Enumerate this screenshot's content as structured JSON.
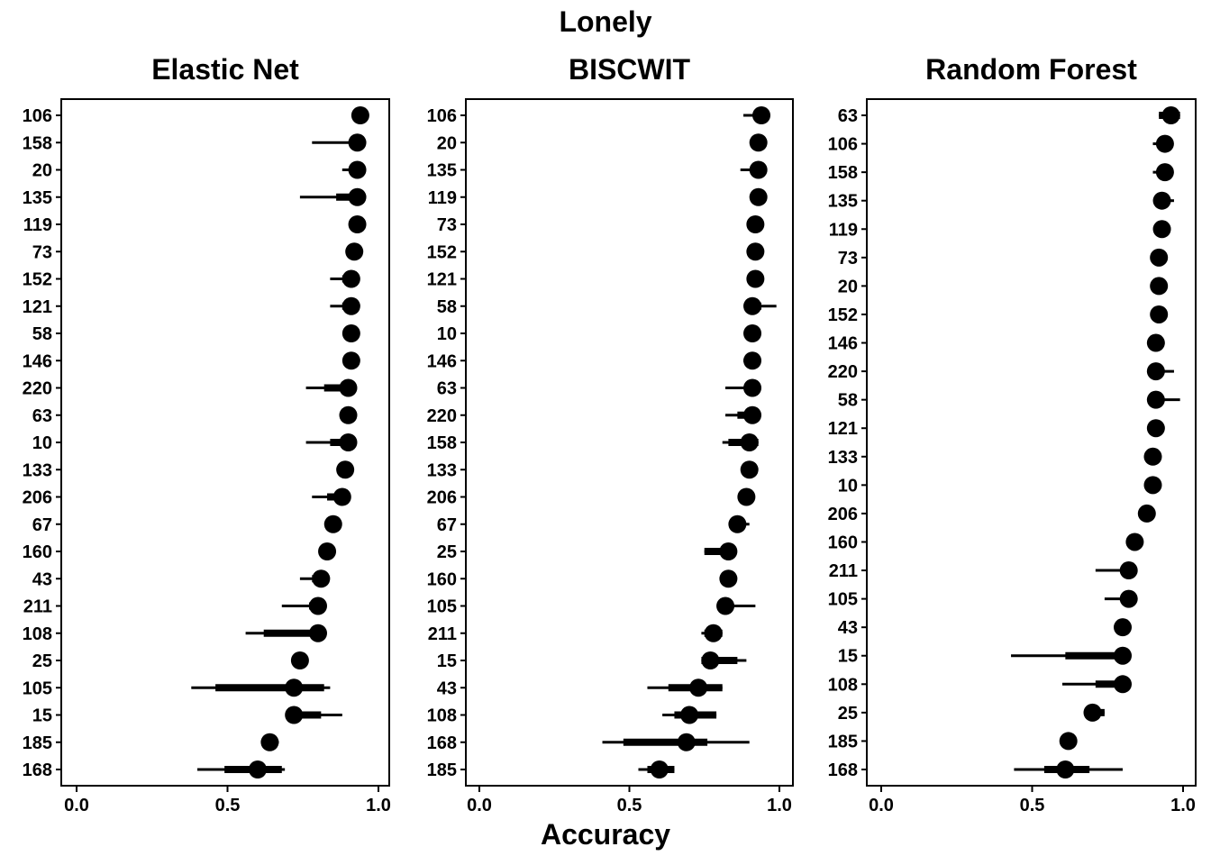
{
  "figure": {
    "title": "Lonely",
    "xlabel": "Accuracy"
  },
  "chart_data": [
    {
      "type": "dot-interval",
      "title": "Elastic Net",
      "xlim": [
        0.0,
        1.0
      ],
      "xticks": [
        "0.0",
        "0.5",
        "1.0"
      ],
      "grid": false,
      "rows": [
        {
          "label": "106",
          "value": 0.94,
          "inner": [
            0.94,
            0.94
          ],
          "outer": [
            0.94,
            0.94
          ]
        },
        {
          "label": "158",
          "value": 0.93,
          "inner": [
            0.93,
            0.93
          ],
          "outer": [
            0.78,
            0.93
          ]
        },
        {
          "label": "20",
          "value": 0.93,
          "inner": [
            0.92,
            0.93
          ],
          "outer": [
            0.88,
            0.93
          ]
        },
        {
          "label": "135",
          "value": 0.93,
          "inner": [
            0.86,
            0.93
          ],
          "outer": [
            0.74,
            0.93
          ]
        },
        {
          "label": "119",
          "value": 0.93,
          "inner": [
            0.93,
            0.93
          ],
          "outer": [
            0.93,
            0.93
          ]
        },
        {
          "label": "73",
          "value": 0.92,
          "inner": [
            0.92,
            0.92
          ],
          "outer": [
            0.92,
            0.92
          ]
        },
        {
          "label": "152",
          "value": 0.91,
          "inner": [
            0.88,
            0.92
          ],
          "outer": [
            0.84,
            0.92
          ]
        },
        {
          "label": "121",
          "value": 0.91,
          "inner": [
            0.88,
            0.92
          ],
          "outer": [
            0.84,
            0.93
          ]
        },
        {
          "label": "58",
          "value": 0.91,
          "inner": [
            0.91,
            0.91
          ],
          "outer": [
            0.91,
            0.91
          ]
        },
        {
          "label": "146",
          "value": 0.91,
          "inner": [
            0.91,
            0.91
          ],
          "outer": [
            0.91,
            0.91
          ]
        },
        {
          "label": "220",
          "value": 0.9,
          "inner": [
            0.82,
            0.91
          ],
          "outer": [
            0.76,
            0.91
          ]
        },
        {
          "label": "63",
          "value": 0.9,
          "inner": [
            0.9,
            0.9
          ],
          "outer": [
            0.9,
            0.9
          ]
        },
        {
          "label": "10",
          "value": 0.9,
          "inner": [
            0.84,
            0.91
          ],
          "outer": [
            0.76,
            0.91
          ]
        },
        {
          "label": "133",
          "value": 0.89,
          "inner": [
            0.89,
            0.89
          ],
          "outer": [
            0.89,
            0.89
          ]
        },
        {
          "label": "206",
          "value": 0.88,
          "inner": [
            0.83,
            0.89
          ],
          "outer": [
            0.78,
            0.89
          ]
        },
        {
          "label": "67",
          "value": 0.85,
          "inner": [
            0.85,
            0.85
          ],
          "outer": [
            0.85,
            0.85
          ]
        },
        {
          "label": "160",
          "value": 0.83,
          "inner": [
            0.83,
            0.83
          ],
          "outer": [
            0.83,
            0.83
          ]
        },
        {
          "label": "43",
          "value": 0.81,
          "inner": [
            0.78,
            0.82
          ],
          "outer": [
            0.74,
            0.82
          ]
        },
        {
          "label": "211",
          "value": 0.8,
          "inner": [
            0.77,
            0.8
          ],
          "outer": [
            0.68,
            0.8
          ]
        },
        {
          "label": "108",
          "value": 0.8,
          "inner": [
            0.62,
            0.82
          ],
          "outer": [
            0.56,
            0.82
          ]
        },
        {
          "label": "25",
          "value": 0.74,
          "inner": [
            0.74,
            0.74
          ],
          "outer": [
            0.74,
            0.74
          ]
        },
        {
          "label": "105",
          "value": 0.72,
          "inner": [
            0.46,
            0.82
          ],
          "outer": [
            0.38,
            0.84
          ]
        },
        {
          "label": "15",
          "value": 0.72,
          "inner": [
            0.72,
            0.81
          ],
          "outer": [
            0.72,
            0.88
          ]
        },
        {
          "label": "185",
          "value": 0.64,
          "inner": [
            0.64,
            0.66
          ],
          "outer": [
            0.64,
            0.67
          ]
        },
        {
          "label": "168",
          "value": 0.6,
          "inner": [
            0.49,
            0.68
          ],
          "outer": [
            0.4,
            0.69
          ]
        }
      ]
    },
    {
      "type": "dot-interval",
      "title": "BISCWIT",
      "xlim": [
        0.0,
        1.0
      ],
      "xticks": [
        "0.0",
        "0.5",
        "1.0"
      ],
      "grid": false,
      "rows": [
        {
          "label": "106",
          "value": 0.94,
          "inner": [
            0.94,
            0.94
          ],
          "outer": [
            0.88,
            0.94
          ]
        },
        {
          "label": "20",
          "value": 0.93,
          "inner": [
            0.93,
            0.93
          ],
          "outer": [
            0.93,
            0.93
          ]
        },
        {
          "label": "135",
          "value": 0.93,
          "inner": [
            0.93,
            0.93
          ],
          "outer": [
            0.87,
            0.93
          ]
        },
        {
          "label": "119",
          "value": 0.93,
          "inner": [
            0.93,
            0.93
          ],
          "outer": [
            0.93,
            0.93
          ]
        },
        {
          "label": "73",
          "value": 0.92,
          "inner": [
            0.92,
            0.92
          ],
          "outer": [
            0.92,
            0.92
          ]
        },
        {
          "label": "152",
          "value": 0.92,
          "inner": [
            0.92,
            0.92
          ],
          "outer": [
            0.92,
            0.92
          ]
        },
        {
          "label": "121",
          "value": 0.92,
          "inner": [
            0.92,
            0.92
          ],
          "outer": [
            0.92,
            0.92
          ]
        },
        {
          "label": "58",
          "value": 0.91,
          "inner": [
            0.91,
            0.94
          ],
          "outer": [
            0.91,
            0.99
          ]
        },
        {
          "label": "10",
          "value": 0.91,
          "inner": [
            0.91,
            0.91
          ],
          "outer": [
            0.91,
            0.91
          ]
        },
        {
          "label": "146",
          "value": 0.91,
          "inner": [
            0.91,
            0.91
          ],
          "outer": [
            0.88,
            0.91
          ]
        },
        {
          "label": "63",
          "value": 0.91,
          "inner": [
            0.91,
            0.91
          ],
          "outer": [
            0.82,
            0.91
          ]
        },
        {
          "label": "220",
          "value": 0.91,
          "inner": [
            0.86,
            0.91
          ],
          "outer": [
            0.82,
            0.91
          ]
        },
        {
          "label": "158",
          "value": 0.9,
          "inner": [
            0.83,
            0.93
          ],
          "outer": [
            0.81,
            0.93
          ]
        },
        {
          "label": "133",
          "value": 0.9,
          "inner": [
            0.9,
            0.9
          ],
          "outer": [
            0.9,
            0.9
          ]
        },
        {
          "label": "206",
          "value": 0.89,
          "inner": [
            0.89,
            0.89
          ],
          "outer": [
            0.89,
            0.89
          ]
        },
        {
          "label": "67",
          "value": 0.86,
          "inner": [
            0.86,
            0.86
          ],
          "outer": [
            0.86,
            0.9
          ]
        },
        {
          "label": "25",
          "value": 0.83,
          "inner": [
            0.75,
            0.83
          ],
          "outer": [
            0.75,
            0.83
          ]
        },
        {
          "label": "160",
          "value": 0.83,
          "inner": [
            0.83,
            0.83
          ],
          "outer": [
            0.83,
            0.83
          ]
        },
        {
          "label": "105",
          "value": 0.82,
          "inner": [
            0.82,
            0.82
          ],
          "outer": [
            0.82,
            0.92
          ]
        },
        {
          "label": "211",
          "value": 0.78,
          "inner": [
            0.75,
            0.81
          ],
          "outer": [
            0.74,
            0.81
          ]
        },
        {
          "label": "15",
          "value": 0.77,
          "inner": [
            0.74,
            0.86
          ],
          "outer": [
            0.74,
            0.89
          ]
        },
        {
          "label": "43",
          "value": 0.73,
          "inner": [
            0.63,
            0.81
          ],
          "outer": [
            0.56,
            0.81
          ]
        },
        {
          "label": "108",
          "value": 0.7,
          "inner": [
            0.65,
            0.79
          ],
          "outer": [
            0.61,
            0.79
          ]
        },
        {
          "label": "168",
          "value": 0.69,
          "inner": [
            0.48,
            0.76
          ],
          "outer": [
            0.41,
            0.9
          ]
        },
        {
          "label": "185",
          "value": 0.6,
          "inner": [
            0.56,
            0.65
          ],
          "outer": [
            0.53,
            0.65
          ]
        }
      ]
    },
    {
      "type": "dot-interval",
      "title": "Random Forest",
      "xlim": [
        0.0,
        1.0
      ],
      "xticks": [
        "0.0",
        "0.5",
        "1.0"
      ],
      "grid": false,
      "rows": [
        {
          "label": "63",
          "value": 0.96,
          "inner": [
            0.92,
            0.99
          ],
          "outer": [
            0.92,
            0.99
          ]
        },
        {
          "label": "106",
          "value": 0.94,
          "inner": [
            0.94,
            0.94
          ],
          "outer": [
            0.9,
            0.94
          ]
        },
        {
          "label": "158",
          "value": 0.94,
          "inner": [
            0.94,
            0.94
          ],
          "outer": [
            0.9,
            0.94
          ]
        },
        {
          "label": "135",
          "value": 0.93,
          "inner": [
            0.93,
            0.95
          ],
          "outer": [
            0.93,
            0.97
          ]
        },
        {
          "label": "119",
          "value": 0.93,
          "inner": [
            0.93,
            0.93
          ],
          "outer": [
            0.93,
            0.93
          ]
        },
        {
          "label": "73",
          "value": 0.92,
          "inner": [
            0.92,
            0.92
          ],
          "outer": [
            0.92,
            0.92
          ]
        },
        {
          "label": "20",
          "value": 0.92,
          "inner": [
            0.92,
            0.92
          ],
          "outer": [
            0.92,
            0.92
          ]
        },
        {
          "label": "152",
          "value": 0.92,
          "inner": [
            0.92,
            0.92
          ],
          "outer": [
            0.92,
            0.92
          ]
        },
        {
          "label": "146",
          "value": 0.91,
          "inner": [
            0.91,
            0.91
          ],
          "outer": [
            0.91,
            0.91
          ]
        },
        {
          "label": "220",
          "value": 0.91,
          "inner": [
            0.91,
            0.93
          ],
          "outer": [
            0.91,
            0.97
          ]
        },
        {
          "label": "58",
          "value": 0.91,
          "inner": [
            0.91,
            0.91
          ],
          "outer": [
            0.91,
            0.99
          ]
        },
        {
          "label": "121",
          "value": 0.91,
          "inner": [
            0.91,
            0.91
          ],
          "outer": [
            0.91,
            0.91
          ]
        },
        {
          "label": "133",
          "value": 0.9,
          "inner": [
            0.9,
            0.9
          ],
          "outer": [
            0.9,
            0.9
          ]
        },
        {
          "label": "10",
          "value": 0.9,
          "inner": [
            0.9,
            0.9
          ],
          "outer": [
            0.9,
            0.9
          ]
        },
        {
          "label": "206",
          "value": 0.88,
          "inner": [
            0.88,
            0.88
          ],
          "outer": [
            0.88,
            0.88
          ]
        },
        {
          "label": "160",
          "value": 0.84,
          "inner": [
            0.84,
            0.84
          ],
          "outer": [
            0.84,
            0.84
          ]
        },
        {
          "label": "211",
          "value": 0.82,
          "inner": [
            0.82,
            0.82
          ],
          "outer": [
            0.71,
            0.82
          ]
        },
        {
          "label": "105",
          "value": 0.82,
          "inner": [
            0.82,
            0.82
          ],
          "outer": [
            0.74,
            0.82
          ]
        },
        {
          "label": "43",
          "value": 0.8,
          "inner": [
            0.8,
            0.8
          ],
          "outer": [
            0.8,
            0.8
          ]
        },
        {
          "label": "15",
          "value": 0.8,
          "inner": [
            0.61,
            0.8
          ],
          "outer": [
            0.43,
            0.8
          ]
        },
        {
          "label": "108",
          "value": 0.8,
          "inner": [
            0.71,
            0.8
          ],
          "outer": [
            0.6,
            0.8
          ]
        },
        {
          "label": "25",
          "value": 0.7,
          "inner": [
            0.7,
            0.74
          ],
          "outer": [
            0.7,
            0.74
          ]
        },
        {
          "label": "185",
          "value": 0.62,
          "inner": [
            0.62,
            0.62
          ],
          "outer": [
            0.62,
            0.62
          ]
        },
        {
          "label": "168",
          "value": 0.61,
          "inner": [
            0.54,
            0.69
          ],
          "outer": [
            0.44,
            0.8
          ]
        }
      ]
    }
  ]
}
